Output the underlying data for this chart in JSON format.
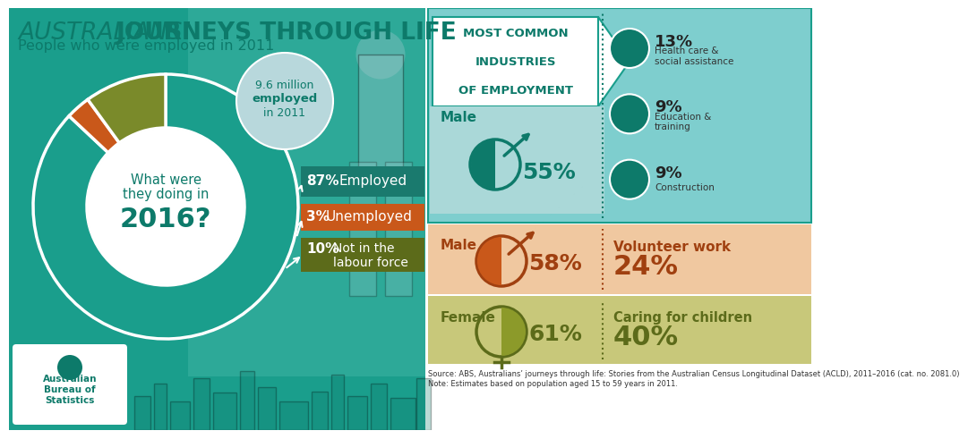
{
  "title_regular": "AUSTRALIANS’ ",
  "title_bold": "JOURNEYS THROUGH LIFE",
  "subtitle": "People who were employed in 2011",
  "bg_teal": "#1a9e8c",
  "bg_white": "#ffffff",
  "teal_dark": "#0d7a6a",
  "teal_mid": "#1a9e8c",
  "teal_light": "#7ecece",
  "teal_pale": "#b8dede",
  "orange_dark": "#a04010",
  "orange_mid": "#c9581a",
  "orange_light": "#f0c8a0",
  "olive_dark": "#5c6b1a",
  "olive_mid": "#8c9a2a",
  "olive_light": "#c8c87a",
  "donut_values": [
    87,
    3,
    10
  ],
  "donut_colors": [
    "#1a9e8c",
    "#c9581a",
    "#7a8a2a"
  ],
  "donut_center_text1": "What were",
  "donut_center_text2": "they doing in",
  "donut_center_year": "2016?",
  "employed_pct": "87%",
  "employed_label": "Employed",
  "employed_bar_color": "#1a7a6e",
  "unemployed_pct": "3%",
  "unemployed_label": "Unemployed",
  "unemployed_bar_color": "#c9581a",
  "notlabour_pct": "10%",
  "notlabour_label1": "Not in the",
  "notlabour_label2": "labour force",
  "notlabour_bar_color": "#5c6b1a",
  "bubble_color": "#b8d8dc",
  "bubble_text1": "9.6 million",
  "bubble_text2": "employed",
  "bubble_text3": "in 2011",
  "ind_box_bg": "#7ecece",
  "ind_box_border": "#1a9e8c",
  "ind_arrow_bg": "#cce8e8",
  "industries_line1": "MOST COMMON",
  "industries_line2": "INDUSTRIES",
  "industries_line3": "OF EMPLOYMENT",
  "male_employed_pct": "55%",
  "ind1_pct": "13%",
  "ind1_label": "Health care &\nsocial assistance",
  "ind2_pct": "9%",
  "ind2_label": "Education &\ntraining",
  "ind3_pct": "9%",
  "ind3_label": "Construction",
  "unemp_row_bg": "#f0c8a0",
  "unemp_male_pct": "58%",
  "vol_pct": "24%",
  "vol_label": "Volunteer work",
  "notl_row_bg": "#c8c87a",
  "notl_female_pct": "61%",
  "caring_pct": "40%",
  "caring_label": "Caring for children",
  "source_line1": "Source: ABS, Australians’ journeys through life: Stories from the Australian Census Longitudinal Dataset (ACLD), 2011–2016 (cat. no. 2081.0)",
  "source_line2": "Note: Estimates based on population aged 15 to 59 years in 2011."
}
